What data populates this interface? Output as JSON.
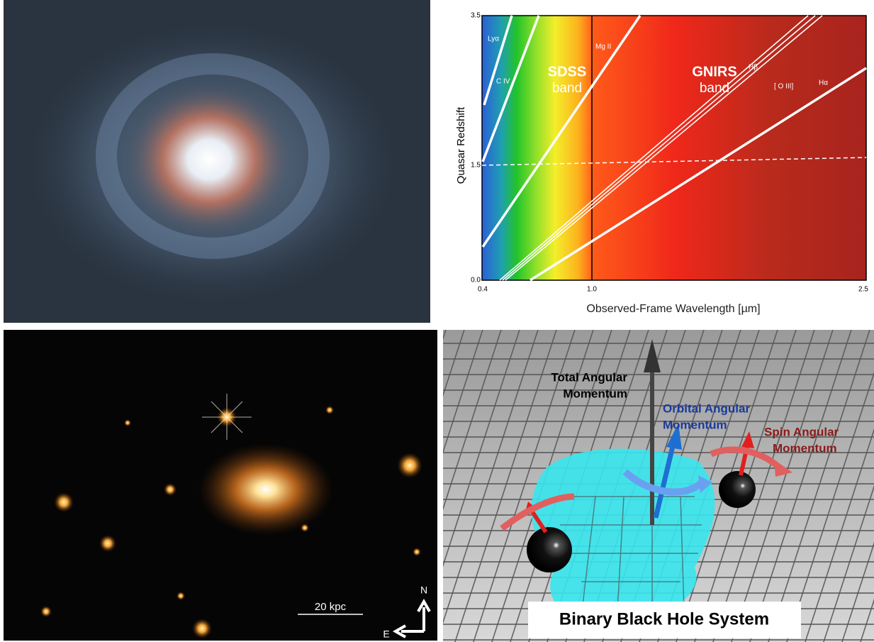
{
  "panels": {
    "redshift_diagram": {
      "y_axis_label": "Quasar Redshift",
      "x_axis_label": "Observed-Frame Wavelength [µm]",
      "y_ticks": [
        "0.0",
        "1.5",
        "3.5"
      ],
      "x_ticks": [
        "0.4",
        "1.0",
        "2.5"
      ],
      "band_labels": [
        "SDSS",
        "band",
        "GNIRS",
        "band"
      ],
      "line_labels": [
        "Lyα",
        "C IV",
        "Mg II",
        "Hβ",
        "[ O III]",
        "Hα"
      ]
    },
    "galaxy_image": {
      "scale_bar": "20 kpc",
      "compass": [
        "N",
        "E"
      ]
    },
    "black_hole_diagram": {
      "labels": [
        "Total Angular",
        "Momentum",
        "Orbital Angular",
        "Momentum",
        "Spin Angular",
        "Momentum"
      ],
      "title": "Binary Black Hole System"
    }
  }
}
